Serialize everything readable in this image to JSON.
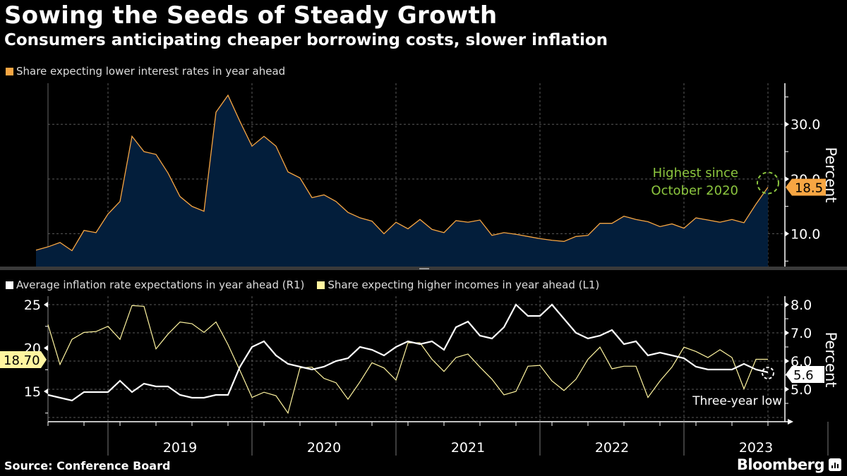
{
  "header": {
    "title": "Sowing the Seeds of Steady Growth",
    "subtitle": "Consumers anticipating cheaper borrowing costs, slower inflation"
  },
  "footer": {
    "source": "Source: Conference Board",
    "brand": "Bloomberg",
    "brand_icon": "bloomberg-chart-icon"
  },
  "colors": {
    "orange": "#F7A643",
    "area_fill": "#031E3B",
    "white_series": "#FFFFFF",
    "yellow_series": "#FFF5A0",
    "annotation_green": "#8CC63F",
    "grid": "#5a5a5a"
  },
  "chart_data": [
    {
      "type": "area",
      "title": "Sowing the Seeds of Steady Growth",
      "legend": [
        {
          "name": "Share expecting lower interest rates in year ahead",
          "color": "#F7A643"
        }
      ],
      "legend_placement": "top-left",
      "x_start": "2018-08",
      "x_end": "2023-12",
      "x_frequency": "monthly",
      "x_tick_labels": [
        "2019",
        "2020",
        "2021",
        "2022",
        "2023"
      ],
      "ylabel": "Percent",
      "y_axis_side": "right",
      "y_ticks": [
        10.0,
        20.0,
        30.0
      ],
      "y_tick_labels": [
        "10.0",
        "20.0",
        "30.0"
      ],
      "ylim": [
        4.0,
        37.5
      ],
      "grid": true,
      "series": [
        {
          "name": "Share expecting lower interest rates in year ahead",
          "values": [
            7.0,
            7.6,
            8.4,
            6.9,
            10.6,
            10.2,
            13.6,
            15.9,
            27.8,
            25.0,
            24.5,
            21.1,
            16.8,
            15.0,
            14.1,
            32.2,
            35.3,
            30.5,
            26.0,
            27.8,
            26.0,
            21.3,
            20.2,
            16.6,
            17.1,
            15.9,
            13.9,
            12.9,
            12.3,
            10.0,
            12.1,
            10.9,
            12.6,
            10.8,
            10.2,
            12.4,
            12.1,
            12.5,
            9.7,
            10.2,
            9.9,
            9.5,
            9.1,
            8.8,
            8.6,
            9.5,
            9.7,
            11.9,
            11.9,
            13.2,
            12.6,
            12.2,
            11.3,
            11.8,
            11.0,
            12.9,
            12.5,
            12.1,
            12.6,
            12.0,
            15.4,
            18.5
          ]
        }
      ],
      "annotations": [
        {
          "text_lines": [
            "Highest since",
            "October 2020"
          ],
          "color": "#8CC63F",
          "points_to": "last value"
        },
        {
          "label": "18.5",
          "type": "last-value-tag",
          "color": "#F7A643"
        }
      ]
    },
    {
      "type": "line",
      "legend": [
        {
          "name": "Average inflation rate expectations in year ahead (R1)",
          "color": "#FFFFFF"
        },
        {
          "name": "Share expecting higher incomes in year ahead (L1)",
          "color": "#FFF5A0"
        }
      ],
      "legend_placement": "top-left",
      "x_start": "2018-08",
      "x_end": "2023-12",
      "x_frequency": "monthly",
      "x_tick_labels": [
        "2019",
        "2020",
        "2021",
        "2022",
        "2023"
      ],
      "left_axis": {
        "ticks": [
          15,
          20,
          25
        ],
        "tick_labels": [
          "15",
          "20",
          "25"
        ],
        "ylim": [
          11.8,
          25.9
        ]
      },
      "right_axis": {
        "label": "Percent",
        "ticks": [
          5.0,
          6.0,
          7.0,
          8.0
        ],
        "tick_labels": [
          "5.0",
          "6.0",
          "7.0",
          "8.0"
        ],
        "ylim": [
          4.05,
          8.3
        ]
      },
      "grid": true,
      "series": [
        {
          "name": "Average inflation rate expectations in year ahead (R1)",
          "axis": "right",
          "values": [
            4.8,
            4.7,
            4.6,
            4.9,
            4.9,
            4.9,
            5.3,
            4.9,
            5.2,
            5.1,
            5.1,
            4.8,
            4.7,
            4.7,
            4.8,
            4.8,
            5.8,
            6.5,
            6.7,
            6.2,
            5.9,
            5.8,
            5.7,
            5.8,
            6.0,
            6.1,
            6.5,
            6.4,
            6.2,
            6.5,
            6.7,
            6.6,
            6.7,
            6.4,
            7.2,
            7.4,
            6.9,
            6.8,
            7.2,
            8.0,
            7.6,
            7.6,
            8.0,
            7.5,
            7.0,
            6.8,
            6.9,
            7.1,
            6.6,
            6.7,
            6.2,
            6.3,
            6.2,
            6.1,
            5.8,
            5.7,
            5.7,
            5.7,
            5.9,
            5.7,
            5.6
          ]
        },
        {
          "name": "Share expecting higher incomes in year ahead (L1)",
          "axis": "left",
          "values": [
            22.7,
            18.1,
            21.0,
            21.8,
            21.9,
            22.5,
            21.0,
            24.9,
            24.8,
            19.9,
            21.6,
            23.0,
            22.8,
            21.8,
            23.0,
            20.4,
            17.4,
            14.3,
            14.9,
            14.5,
            12.5,
            17.7,
            17.8,
            16.5,
            16.0,
            14.1,
            16.1,
            18.3,
            17.7,
            16.3,
            20.6,
            20.6,
            18.7,
            17.3,
            18.9,
            19.3,
            17.8,
            16.4,
            14.6,
            15.0,
            17.9,
            18.0,
            16.2,
            15.1,
            16.4,
            18.7,
            20.1,
            17.6,
            17.9,
            17.9,
            14.3,
            16.2,
            17.8,
            20.1,
            19.6,
            18.9,
            19.8,
            18.9,
            15.3,
            18.7,
            18.7
          ]
        }
      ],
      "annotations": [
        {
          "text": "Three-year low",
          "points_to": "last inflation expectation value"
        },
        {
          "label": "5.6",
          "type": "last-value-tag",
          "axis": "right",
          "color": "#FFFFFF"
        },
        {
          "label": "18.70",
          "type": "last-value-tag",
          "axis": "left",
          "color": "#FFF5A0"
        }
      ]
    }
  ]
}
